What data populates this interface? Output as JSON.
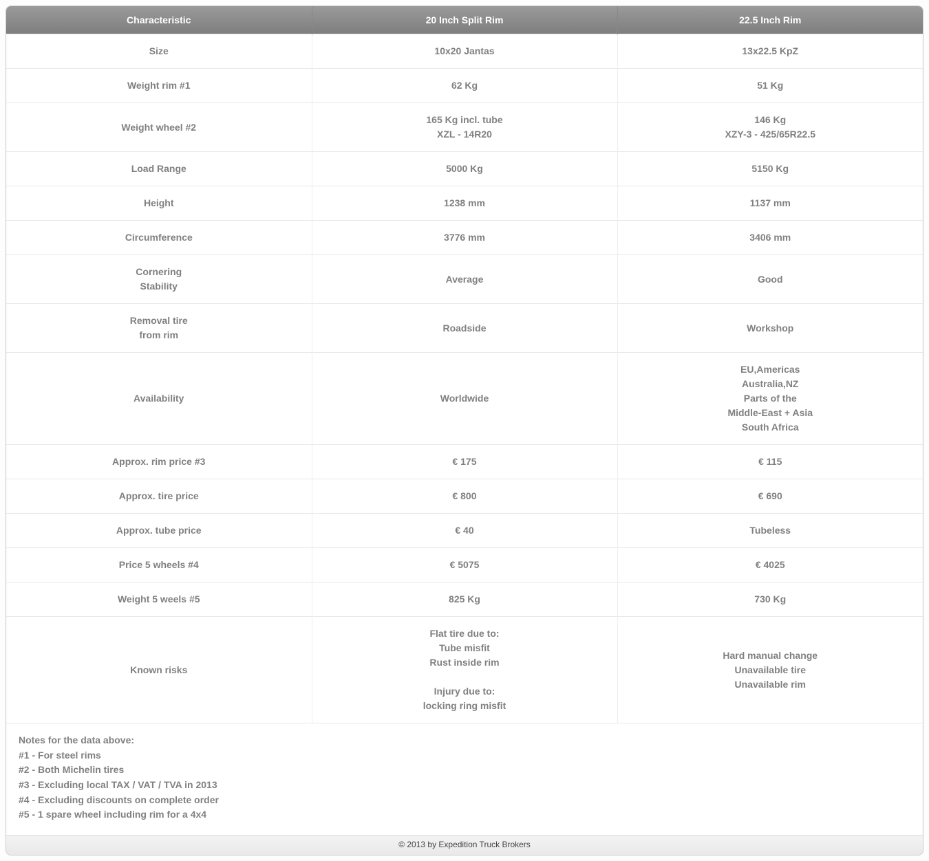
{
  "table": {
    "headers": [
      "Characteristic",
      "20 Inch Split Rim",
      "22.5 Inch Rim"
    ],
    "rows": [
      {
        "label": "Size",
        "col20": "10x20 Jantas",
        "col225": "13x22.5 KpZ"
      },
      {
        "label": "Weight rim #1",
        "col20": "62 Kg",
        "col225": "51 Kg"
      },
      {
        "label": "Weight wheel #2",
        "col20": "165 Kg incl. tube\nXZL - 14R20",
        "col225": "146 Kg\nXZY-3 - 425/65R22.5"
      },
      {
        "label": "Load Range",
        "col20": "5000 Kg",
        "col225": "5150 Kg"
      },
      {
        "label": "Height",
        "col20": "1238 mm",
        "col225": "1137 mm"
      },
      {
        "label": "Circumference",
        "col20": "3776 mm",
        "col225": "3406 mm"
      },
      {
        "label": "Cornering\nStability",
        "col20": "Average",
        "col225": "Good"
      },
      {
        "label": "Removal tire\nfrom rim",
        "col20": "Roadside",
        "col225": "Workshop"
      },
      {
        "label": "Availability",
        "col20": "Worldwide",
        "col225": "EU,Americas\nAustralia,NZ\nParts of the\nMiddle-East + Asia\nSouth Africa"
      },
      {
        "label": "Approx. rim price #3",
        "col20": "€ 175",
        "col225": "€ 115"
      },
      {
        "label": "Approx. tire price",
        "col20": "€ 800",
        "col225": "€ 690"
      },
      {
        "label": "Approx. tube price",
        "col20": "€ 40",
        "col225": "Tubeless"
      },
      {
        "label": "Price 5 wheels #4",
        "col20": "€ 5075",
        "col225": "€ 4025"
      },
      {
        "label": "Weight 5 weels #5",
        "col20": "825 Kg",
        "col225": "730 Kg"
      },
      {
        "label": "Known risks",
        "col20": "Flat tire due to:\nTube misfit\nRust inside rim\n\nInjury due to:\nlocking ring misfit",
        "col225": "Hard manual change\nUnavailable tire\nUnavailable rim"
      }
    ]
  },
  "notes": {
    "title": "Notes for the data above:",
    "lines": [
      "#1 - For steel rims",
      "#2 - Both Michelin tires",
      "#3 - Excluding local TAX / VAT / TVA in 2013",
      "#4 - Excluding discounts on complete order",
      "#5 - 1 spare wheel including rim for a 4x4"
    ]
  },
  "footer": "© 2013 by Expedition Truck Brokers",
  "style": {
    "header_bg_from": "#9a9a9a",
    "header_bg_to": "#7e7e7e",
    "header_text_color": "#ffffff",
    "cell_text_color": "#808080",
    "border_color": "#e8e8e8",
    "font_size_header": 14,
    "font_size_cell": 14,
    "font_size_footer": 12
  }
}
